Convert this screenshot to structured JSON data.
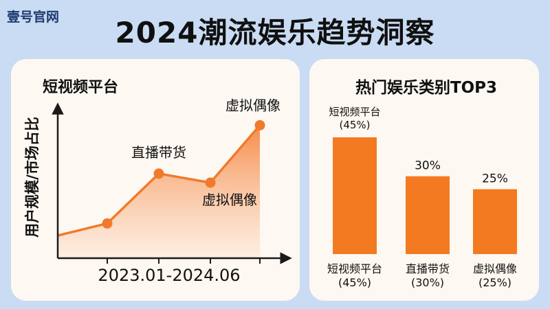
{
  "brand": "壹号官网",
  "title": "2024潮流娱乐趋势洞察",
  "chart_data": [
    {
      "type": "area",
      "title": "短视频平台",
      "ylabel": "用户规模/市场占比",
      "xlabel": "2023.01-2024.06",
      "grid": false,
      "points": [
        {
          "label": "",
          "y": 15
        },
        {
          "label": "",
          "y": 23
        },
        {
          "label": "直播带货",
          "y": 56
        },
        {
          "label": "虚拟偶像",
          "y": 50
        },
        {
          "label": "虚拟偶像",
          "y": 88
        }
      ],
      "colors": {
        "line": "#f07a2c",
        "area": "#f7a070"
      }
    },
    {
      "type": "bar",
      "title": "热门娱乐类别TOP3",
      "categories": [
        "短视频平台",
        "直播带货",
        "虚拟偶像"
      ],
      "values": [
        45,
        30,
        25
      ],
      "value_labels": [
        "短视频平台\n(45%)",
        "30%",
        "25%"
      ],
      "tick_labels": [
        "短视频平台\n(45%)",
        "直播带货\n(30%)",
        "虚拟偶像\n(25%)"
      ],
      "ylim": [
        0,
        50
      ],
      "colors": {
        "bar": "#f47a22"
      }
    }
  ]
}
